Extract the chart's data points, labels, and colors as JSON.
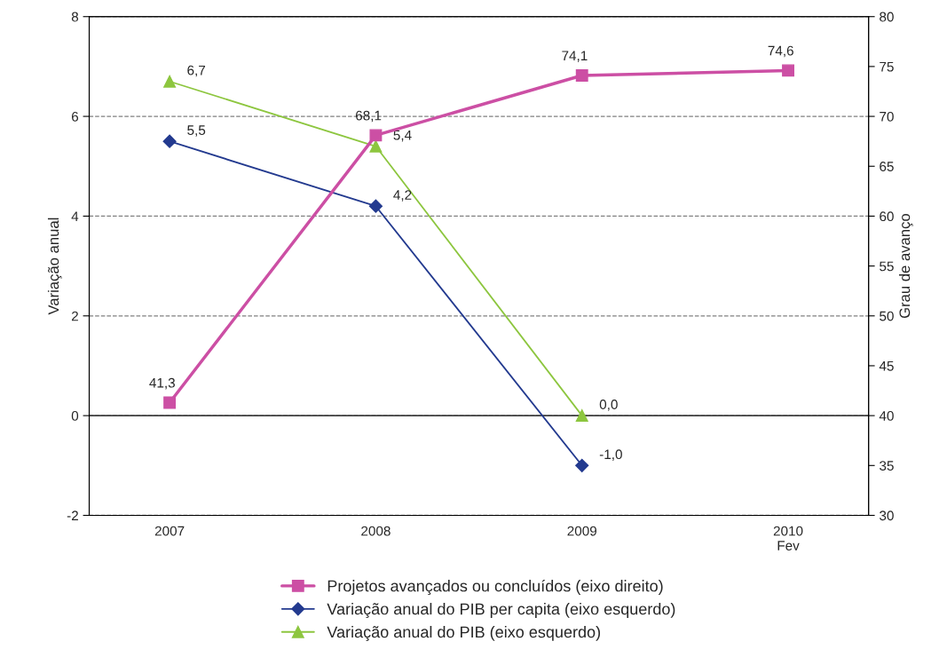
{
  "chart_data": {
    "type": "line",
    "categories": [
      "2007",
      "2008",
      "2009",
      "2010\nFev"
    ],
    "ylabel": "Variação anual",
    "y2label": "Grau de avanço",
    "ylim": [
      -2,
      8
    ],
    "yticks": [
      -2,
      0,
      2,
      4,
      6,
      8
    ],
    "y2lim": [
      30,
      80
    ],
    "y2ticks": [
      30,
      35,
      40,
      45,
      50,
      55,
      60,
      65,
      70,
      75,
      80
    ],
    "grid": "y",
    "legend": "bottom",
    "line_style": "solid",
    "ref_lines": [
      {
        "axis": "y",
        "value": 0,
        "color": "#404040",
        "line_style": "solid"
      }
    ],
    "series": [
      {
        "name": "Projetos avançados ou concluídos (eixo direito)",
        "color": "#cc4fa4",
        "axis": "y2",
        "marker": "square",
        "values": [
          41.3,
          68.1,
          74.1,
          74.6
        ],
        "value_labels": [
          "41,3",
          "68,1",
          "74,1",
          "74,6"
        ]
      },
      {
        "name": "Variação anual do PIB per capita (eixo esquerdo)",
        "color": "#233a8f",
        "marker": "diamond",
        "values": [
          5.5,
          4.2,
          -1.0,
          null
        ],
        "value_labels": [
          "5,5",
          "4,2",
          "-1,0",
          null
        ]
      },
      {
        "name": "Variação anual do PIB (eixo esquerdo)",
        "color": "#8dc63f",
        "marker": "triangle",
        "values": [
          6.7,
          5.4,
          0.0,
          null
        ],
        "value_labels": [
          "6,7",
          "5,4",
          "0,0",
          null
        ]
      }
    ]
  }
}
